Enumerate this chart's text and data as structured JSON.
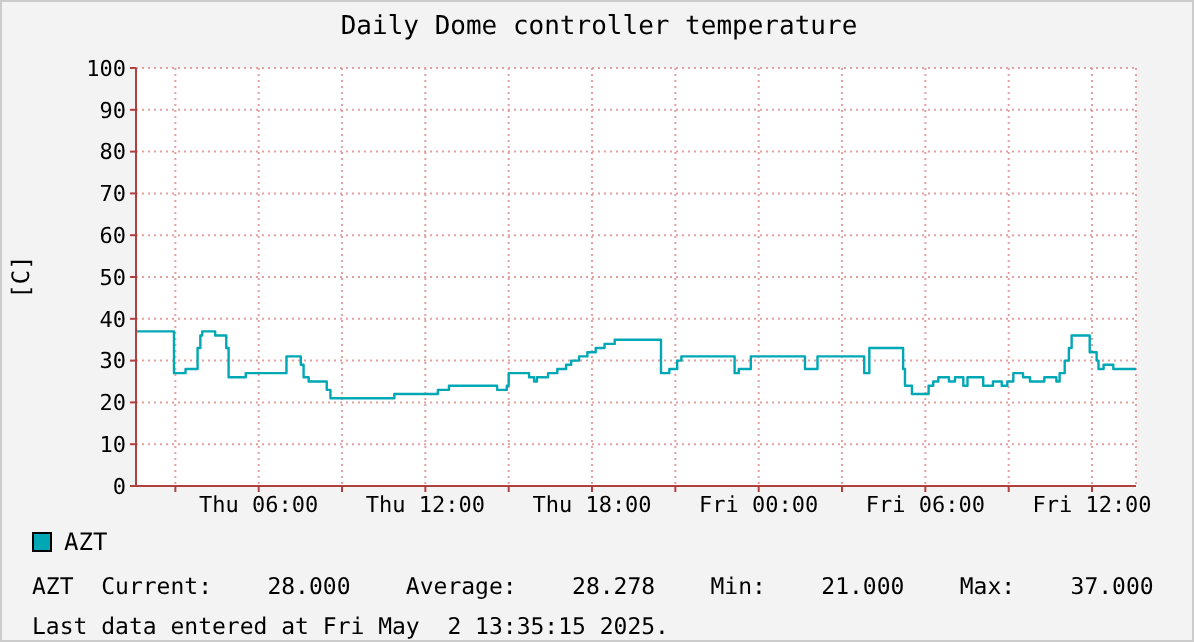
{
  "chart_data": {
    "type": "step",
    "title": "Daily Dome controller temperature",
    "ylabel": "[C]",
    "x": [
      "2025-05-01T01:35",
      "2025-05-01T02:57",
      "2025-05-01T03:22",
      "2025-05-01T03:48",
      "2025-05-01T03:54",
      "2025-05-01T03:58",
      "2025-05-01T04:26",
      "2025-05-01T04:50",
      "2025-05-01T04:55",
      "2025-05-01T05:32",
      "2025-05-01T07:00",
      "2025-05-01T07:31",
      "2025-05-01T07:37",
      "2025-05-01T07:48",
      "2025-05-01T08:27",
      "2025-05-01T08:35",
      "2025-05-01T10:53",
      "2025-05-01T12:27",
      "2025-05-01T12:51",
      "2025-05-01T14:35",
      "2025-05-01T14:56",
      "2025-05-01T15:00",
      "2025-05-01T15:44",
      "2025-05-01T15:55",
      "2025-05-01T16:01",
      "2025-05-01T16:25",
      "2025-05-01T16:45",
      "2025-05-01T17:04",
      "2025-05-01T17:15",
      "2025-05-01T17:32",
      "2025-05-01T17:50",
      "2025-05-01T18:08",
      "2025-05-01T18:27",
      "2025-05-01T18:49",
      "2025-05-01T20:29",
      "2025-05-01T20:47",
      "2025-05-01T21:04",
      "2025-05-01T21:13",
      "2025-05-01T23:08",
      "2025-05-01T23:17",
      "2025-05-01T23:43",
      "2025-05-02T01:40",
      "2025-05-02T02:07",
      "2025-05-02T03:48",
      "2025-05-02T03:59",
      "2025-05-02T05:12",
      "2025-05-02T05:16",
      "2025-05-02T05:31",
      "2025-05-02T06:07",
      "2025-05-02T06:17",
      "2025-05-02T06:28",
      "2025-05-02T06:51",
      "2025-05-02T07:04",
      "2025-05-02T07:22",
      "2025-05-02T07:31",
      "2025-05-02T08:05",
      "2025-05-02T08:26",
      "2025-05-02T08:45",
      "2025-05-02T08:57",
      "2025-05-02T09:10",
      "2025-05-02T09:31",
      "2025-05-02T09:46",
      "2025-05-02T10:17",
      "2025-05-02T10:43",
      "2025-05-02T10:50",
      "2025-05-02T11:01",
      "2025-05-02T11:10",
      "2025-05-02T11:16",
      "2025-05-02T11:55",
      "2025-05-02T12:10",
      "2025-05-02T12:14",
      "2025-05-02T12:25",
      "2025-05-02T12:46",
      "2025-05-02T13:32"
    ],
    "series": [
      {
        "name": "AZT",
        "color": "#00a7b5",
        "values": [
          37,
          27,
          28,
          33,
          36,
          37,
          36,
          33,
          26,
          27,
          31,
          29,
          26,
          25,
          23,
          21,
          22,
          23,
          24,
          23,
          24,
          27,
          26,
          25,
          26,
          27,
          28,
          29,
          30,
          31,
          32,
          33,
          34,
          35,
          27,
          28,
          30,
          31,
          27,
          28,
          31,
          28,
          31,
          27,
          33,
          28,
          24,
          22,
          24,
          25,
          26,
          25,
          26,
          24,
          26,
          24,
          25,
          24,
          25,
          27,
          26,
          25,
          26,
          25,
          27,
          30,
          33,
          36,
          32,
          30,
          28,
          29,
          28,
          28
        ]
      }
    ],
    "xlim": [
      "2025-05-01T01:35",
      "2025-05-02T13:35"
    ],
    "xticks": [
      {
        "value": "2025-05-01T03:00",
        "label": null
      },
      {
        "value": "2025-05-01T06:00",
        "label": "Thu 06:00"
      },
      {
        "value": "2025-05-01T09:00",
        "label": null
      },
      {
        "value": "2025-05-01T12:00",
        "label": "Thu 12:00"
      },
      {
        "value": "2025-05-01T15:00",
        "label": null
      },
      {
        "value": "2025-05-01T18:00",
        "label": "Thu 18:00"
      },
      {
        "value": "2025-05-01T21:00",
        "label": null
      },
      {
        "value": "2025-05-02T00:00",
        "label": "Fri 00:00"
      },
      {
        "value": "2025-05-02T03:00",
        "label": null
      },
      {
        "value": "2025-05-02T06:00",
        "label": "Fri 06:00"
      },
      {
        "value": "2025-05-02T09:00",
        "label": null
      },
      {
        "value": "2025-05-02T12:00",
        "label": "Fri 12:00"
      }
    ],
    "ylim": [
      0,
      100
    ],
    "yticks": [
      0,
      10,
      20,
      30,
      40,
      50,
      60,
      70,
      80,
      90,
      100
    ],
    "grid": true,
    "legend": "bottom",
    "annotations": [
      "AZT  Current:    28.000    Average:    28.278    Min:    21.000    Max:    37.000",
      "Last data entered at Fri May  2 13:35:15 2025."
    ]
  }
}
